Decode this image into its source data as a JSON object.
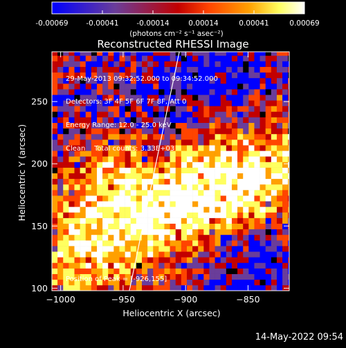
{
  "chart_data": {
    "type": "heatmap",
    "title": "Reconstructed RHESSI Image",
    "xlabel": "Heliocentric X (arcsec)",
    "ylabel": "Heliocentric Y (arcsec)",
    "xlim": [
      -1007,
      -817
    ],
    "ylim": [
      98,
      290
    ],
    "xticks": [
      -1000,
      -950,
      -900,
      -850
    ],
    "yticks": [
      100,
      150,
      200,
      250
    ],
    "colorbar": {
      "ticks": [
        "-0.00069",
        "-0.00041",
        "-0.00014",
        "0.00014",
        "0.00041",
        "0.00069"
      ],
      "units_label": "(photons cm⁻² s⁻¹ asec⁻²)",
      "colors": [
        "#0000ff",
        "#6a3d9a",
        "#c20000",
        "#ff4400",
        "#ffa000",
        "#ffff60",
        "#ffffff"
      ]
    },
    "limb_line": [
      [
        -945,
        98
      ],
      [
        -905,
        290
      ]
    ],
    "peak_position": [
      -926,
      155
    ]
  },
  "info_lines": [
    "29-May-2013 09:32:52.000 to 09:34:52.000",
    "Detectors: 3F 4F 5F 6F 7F 8F, Att 0",
    "Energy Range: 12.0 - 25.0 keV",
    "Clean    Total counts: 3.33E+03"
  ],
  "peak_text": "Position of Peak = [-926,155]",
  "footer_date": "14-May-2022 09:54"
}
